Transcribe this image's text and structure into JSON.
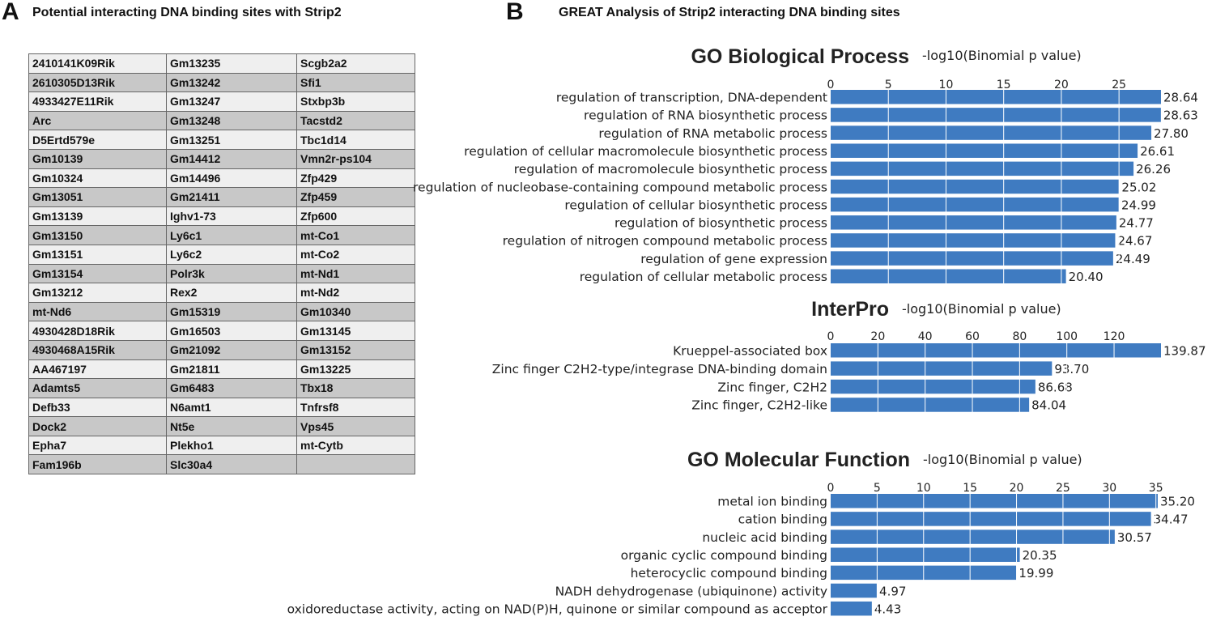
{
  "panelA": {
    "letter": "A",
    "title": "Potential interacting DNA binding sites with Strip2",
    "rows": [
      [
        "2410141K09Rik",
        "Gm13235",
        "Scgb2a2"
      ],
      [
        "2610305D13Rik",
        "Gm13242",
        "Sfi1"
      ],
      [
        "4933427E11Rik",
        "Gm13247",
        "Stxbp3b"
      ],
      [
        "Arc",
        "Gm13248",
        "Tacstd2"
      ],
      [
        "D5Ertd579e",
        "Gm13251",
        "Tbc1d14"
      ],
      [
        "Gm10139",
        "Gm14412",
        "Vmn2r-ps104"
      ],
      [
        "Gm10324",
        "Gm14496",
        "Zfp429"
      ],
      [
        "Gm13051",
        "Gm21411",
        "Zfp459"
      ],
      [
        "Gm13139",
        "Ighv1-73",
        "Zfp600"
      ],
      [
        "Gm13150",
        "Ly6c1",
        "mt-Co1"
      ],
      [
        "Gm13151",
        "Ly6c2",
        "mt-Co2"
      ],
      [
        "Gm13154",
        "Polr3k",
        "mt-Nd1"
      ],
      [
        "Gm13212",
        "Rex2",
        "mt-Nd2"
      ],
      [
        "mt-Nd6",
        "Gm15319",
        "Gm10340"
      ],
      [
        "4930428D18Rik",
        "Gm16503",
        "Gm13145"
      ],
      [
        "4930468A15Rik",
        "Gm21092",
        "Gm13152"
      ],
      [
        "AA467197",
        "Gm21811",
        "Gm13225"
      ],
      [
        "Adamts5",
        "Gm6483",
        "Tbx18"
      ],
      [
        "Defb33",
        "N6amt1",
        "Tnfrsf8"
      ],
      [
        "Dock2",
        "Nt5e",
        "Vps45"
      ],
      [
        "Epha7",
        "Plekho1",
        "mt-Cytb"
      ],
      [
        "Fam196b",
        "Slc30a4",
        ""
      ]
    ]
  },
  "panelB": {
    "letter": "B",
    "title": "GREAT  Analysis of Strip2 interacting DNA binding sites"
  },
  "colors": {
    "bar": "#3f7bc1",
    "grid": "#ffffff"
  },
  "chart_data": [
    {
      "type": "bar",
      "orientation": "horizontal",
      "title": "GO Biological Process",
      "xlabel": "-log10(Binomial p value)",
      "xlim": [
        0,
        28.64
      ],
      "ticks": [
        0,
        5,
        10,
        15,
        20,
        25
      ],
      "categories": [
        "regulation of transcription, DNA-dependent",
        "regulation of RNA biosynthetic process",
        "regulation of RNA metabolic process",
        "regulation of cellular macromolecule biosynthetic process",
        "regulation of macromolecule biosynthetic process",
        "regulation of nucleobase-containing compound metabolic process",
        "regulation of cellular biosynthetic process",
        "regulation of biosynthetic process",
        "regulation of nitrogen compound metabolic process",
        "regulation of gene expression",
        "regulation of cellular metabolic process"
      ],
      "values": [
        28.64,
        28.63,
        27.8,
        26.61,
        26.26,
        25.02,
        24.99,
        24.77,
        24.67,
        24.49,
        20.4
      ],
      "labels": [
        "28.64",
        "28.63",
        "27.80",
        "26.61",
        "26.26",
        "25.02",
        "24.99",
        "24.77",
        "24.67",
        "24.49",
        "20.40"
      ]
    },
    {
      "type": "bar",
      "orientation": "horizontal",
      "title": "InterPro",
      "xlabel": "-log10(Binomial p value)",
      "xlim": [
        0,
        139.87
      ],
      "ticks": [
        0,
        20,
        40,
        60,
        80,
        100,
        120
      ],
      "categories": [
        "Krueppel-associated box",
        "Zinc finger C2H2-type/integrase DNA-binding domain",
        "Zinc finger, C2H2",
        "Zinc finger, C2H2-like"
      ],
      "values": [
        139.87,
        93.7,
        86.68,
        84.04
      ],
      "labels": [
        "139.87",
        "93.70",
        "86.68",
        "84.04"
      ]
    },
    {
      "type": "bar",
      "orientation": "horizontal",
      "title": "GO Molecular Function",
      "xlabel": "-log10(Binomial p value)",
      "xlim": [
        0,
        35.2
      ],
      "ticks": [
        0,
        5,
        10,
        15,
        20,
        25,
        30,
        35
      ],
      "categories": [
        "metal ion binding",
        "cation binding",
        "nucleic acid binding",
        "organic cyclic compound binding",
        "heterocyclic compound binding",
        "NADH dehydrogenase (ubiquinone) activity",
        "oxidoreductase activity, acting on NAD(P)H, quinone or similar compound as acceptor"
      ],
      "values": [
        35.2,
        34.47,
        30.57,
        20.35,
        19.99,
        4.97,
        4.43
      ],
      "labels": [
        "35.20",
        "34.47",
        "30.57",
        "20.35",
        "19.99",
        "4.97",
        "4.43"
      ]
    }
  ]
}
